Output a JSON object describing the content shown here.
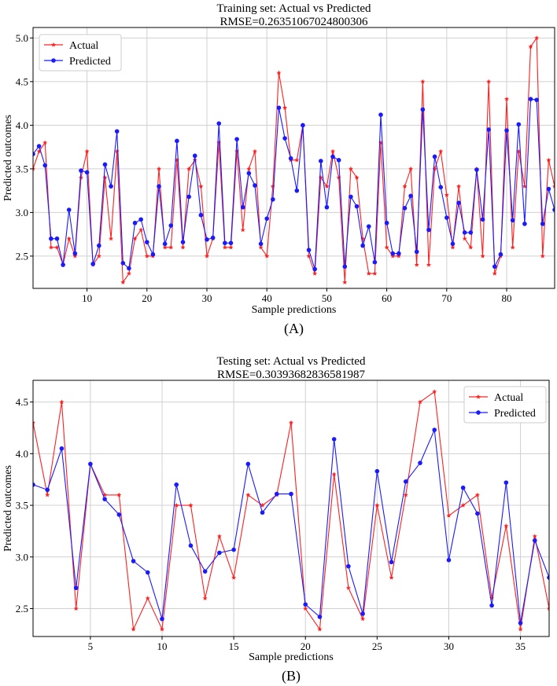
{
  "colors": {
    "actual": "#ff2020",
    "predicted": "#1a1aff",
    "grid": "#d0d0d0",
    "axis": "#000000"
  },
  "chart_data": [
    {
      "type": "line",
      "panel_label": "(A)",
      "title": "Training set: Actual vs Predicted",
      "subtitle": "RMSE=0.26351067024800306",
      "xlabel": "Sample predictions",
      "ylabel": "Predicted outcomes",
      "xlim": [
        1,
        88
      ],
      "ylim": [
        2.13,
        5.12
      ],
      "xticks": [
        10,
        20,
        30,
        40,
        50,
        60,
        70,
        80
      ],
      "yticks": [
        2.5,
        3.0,
        3.5,
        4.0,
        4.5,
        5.0
      ],
      "ytick_labels": [
        "2.5",
        "3.0",
        "3.5",
        "4.0",
        "4.5",
        "5.0"
      ],
      "grid": true,
      "legend_position": "top-left",
      "x_start": 1,
      "series": [
        {
          "name": "Actual",
          "marker": "star",
          "color_key": "actual",
          "values": [
            3.5,
            3.7,
            3.8,
            2.6,
            2.6,
            2.4,
            2.7,
            2.5,
            3.4,
            3.7,
            2.4,
            2.5,
            3.4,
            2.7,
            3.7,
            2.2,
            2.3,
            2.7,
            2.8,
            2.5,
            2.5,
            3.5,
            2.6,
            2.6,
            3.6,
            2.6,
            3.5,
            3.6,
            3.3,
            2.5,
            2.7,
            3.8,
            2.6,
            2.6,
            3.7,
            2.8,
            3.5,
            3.7,
            2.6,
            2.5,
            3.3,
            4.6,
            4.2,
            3.6,
            3.6,
            4.0,
            2.5,
            2.3,
            3.4,
            3.3,
            3.7,
            3.4,
            2.2,
            3.5,
            3.4,
            2.7,
            2.3,
            2.3,
            3.8,
            2.6,
            2.5,
            2.5,
            3.3,
            3.5,
            2.4,
            4.5,
            2.4,
            3.5,
            3.7,
            3.2,
            2.6,
            3.3,
            2.7,
            2.6,
            3.5,
            2.5,
            4.5,
            2.3,
            2.5,
            4.3,
            2.6,
            3.7,
            3.3,
            4.9,
            5.0,
            2.5,
            3.6,
            3.3
          ]
        },
        {
          "name": "Predicted",
          "marker": "circle",
          "color_key": "predicted",
          "values": [
            3.67,
            3.76,
            3.54,
            2.7,
            2.7,
            2.4,
            3.03,
            2.53,
            3.48,
            3.46,
            2.41,
            2.62,
            3.55,
            3.3,
            3.93,
            2.42,
            2.36,
            2.88,
            2.92,
            2.66,
            2.52,
            3.3,
            2.64,
            2.85,
            3.82,
            2.66,
            3.18,
            3.65,
            2.97,
            2.69,
            2.71,
            4.02,
            2.65,
            2.65,
            3.84,
            3.06,
            3.45,
            3.31,
            2.64,
            2.93,
            3.15,
            4.2,
            3.85,
            3.62,
            3.25,
            4.0,
            2.57,
            2.35,
            3.59,
            3.06,
            3.64,
            3.6,
            2.38,
            3.18,
            3.07,
            2.62,
            2.84,
            2.43,
            4.12,
            2.88,
            2.53,
            2.53,
            3.05,
            3.19,
            2.55,
            4.18,
            2.8,
            3.64,
            3.29,
            2.94,
            2.64,
            3.11,
            2.77,
            2.77,
            3.49,
            2.92,
            3.95,
            2.38,
            2.52,
            3.94,
            2.91,
            4.01,
            2.87,
            4.3,
            4.29,
            2.87,
            3.27,
            3.03
          ]
        }
      ]
    },
    {
      "type": "line",
      "panel_label": "(B)",
      "title": "Testing set: Actual vs Predicted",
      "subtitle": "RMSE=0.30393682836581987",
      "xlabel": "Sample predictions",
      "ylabel": "Predicted outcomes",
      "xlim": [
        1,
        37
      ],
      "ylim": [
        2.23,
        4.71
      ],
      "xticks": [
        5,
        10,
        15,
        20,
        25,
        30,
        35
      ],
      "yticks": [
        2.5,
        3.0,
        3.5,
        4.0,
        4.5
      ],
      "ytick_labels": [
        "2.5",
        "3.0",
        "3.5",
        "4.0",
        "4.5"
      ],
      "grid": true,
      "legend_position": "top-right",
      "x_start": 1,
      "series": [
        {
          "name": "Actual",
          "marker": "star",
          "color_key": "actual",
          "values": [
            4.3,
            3.6,
            4.5,
            2.5,
            3.9,
            3.6,
            3.6,
            2.3,
            2.6,
            2.3,
            3.5,
            3.5,
            2.6,
            3.2,
            2.8,
            3.6,
            3.5,
            3.6,
            4.3,
            2.5,
            2.3,
            3.8,
            2.7,
            2.4,
            3.5,
            2.8,
            3.6,
            4.5,
            4.6,
            3.4,
            3.5,
            3.6,
            2.6,
            3.3,
            2.3,
            3.2,
            2.5
          ]
        },
        {
          "name": "Predicted",
          "marker": "circle",
          "color_key": "predicted",
          "values": [
            3.7,
            3.65,
            4.05,
            2.7,
            3.9,
            3.56,
            3.41,
            2.96,
            2.85,
            2.4,
            3.7,
            3.11,
            2.86,
            3.04,
            3.07,
            3.9,
            3.43,
            3.61,
            3.61,
            2.54,
            2.42,
            4.14,
            2.91,
            2.45,
            3.83,
            2.95,
            3.73,
            3.91,
            4.23,
            2.97,
            3.67,
            3.42,
            2.53,
            3.72,
            2.36,
            3.16,
            2.8
          ]
        }
      ]
    }
  ]
}
